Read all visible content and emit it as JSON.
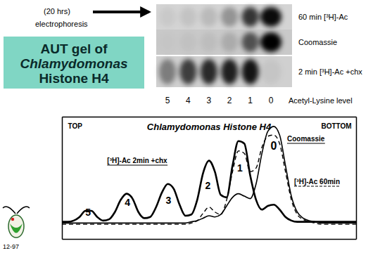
{
  "header": {
    "arrow_text": [
      "(20 hrs)",
      "electrophoresis"
    ],
    "title_lines": [
      "AUT gel of",
      "Chlamydomonas",
      "Histone H4"
    ]
  },
  "gel": {
    "levels": [
      5,
      4,
      3,
      2,
      1,
      0
    ],
    "levels_label": "Acetyl-Lysine level",
    "lanes": [
      {
        "label": "60 min [³H]-Ac",
        "intensities": [
          0.05,
          0.08,
          0.12,
          0.3,
          0.75,
          0.95
        ]
      },
      {
        "label": "Coomassie",
        "intensities": [
          0.02,
          0.04,
          0.06,
          0.15,
          0.6,
          1.0
        ]
      },
      {
        "label": "2 min [³H]-Ac +chx",
        "intensities": [
          0.4,
          0.7,
          0.8,
          0.85,
          0.9,
          0.05
        ]
      }
    ]
  },
  "footer": {
    "date": "12-97"
  },
  "chart_data": {
    "type": "line",
    "title": "Chlamydomonas Histone H4",
    "x": [
      0,
      2,
      4,
      6,
      8,
      10,
      12,
      14,
      16,
      18,
      20,
      22,
      24,
      26,
      28,
      30,
      32,
      34,
      36,
      38,
      40,
      42,
      44,
      46,
      48,
      50,
      52,
      54,
      56,
      58,
      60,
      62,
      64,
      66,
      68,
      70,
      72,
      74,
      76,
      78,
      80,
      82,
      84,
      86,
      88,
      90,
      92,
      94,
      96,
      98,
      100
    ],
    "xlim": [
      0,
      100
    ],
    "ylim": [
      0,
      100
    ],
    "xticks": [],
    "yticks": [],
    "tick_labels": false,
    "series": [
      {
        "name": "[³H]-Ac 2min +chx",
        "color": "#000000",
        "line_style": "solid",
        "values": [
          14,
          14,
          15,
          18,
          23,
          23,
          18,
          15,
          16,
          22,
          32,
          37,
          33,
          22,
          17,
          18,
          26,
          38,
          45,
          41,
          28,
          19,
          20,
          32,
          54,
          64,
          55,
          36,
          34,
          60,
          80,
          78,
          52,
          32,
          24,
          27,
          28,
          24,
          18,
          15,
          14,
          14,
          14,
          14,
          14,
          14,
          14,
          14,
          14,
          14,
          14
        ]
      },
      {
        "name": "Coomassie",
        "color": "#000000",
        "line_style": "solid",
        "values": [
          13,
          13,
          13,
          13,
          13,
          13,
          13,
          13,
          13,
          13,
          13,
          13,
          13,
          13,
          13,
          13,
          13,
          13,
          13,
          13,
          13,
          13,
          14,
          15,
          17,
          19,
          18,
          20,
          27,
          34,
          37,
          35,
          33,
          45,
          70,
          88,
          92,
          85,
          60,
          35,
          22,
          17,
          15,
          14,
          13,
          13,
          13,
          13,
          13,
          13,
          13
        ]
      },
      {
        "name": "[³H]-Ac 60min",
        "color": "#000000",
        "line_style": "dashed",
        "values": [
          12,
          12,
          12,
          12,
          12,
          12,
          12,
          12,
          12,
          12,
          12,
          12,
          12,
          12,
          12,
          12,
          12,
          12,
          12,
          12,
          12,
          12,
          13,
          15,
          21,
          26,
          22,
          20,
          32,
          55,
          72,
          70,
          55,
          58,
          75,
          84,
          85,
          78,
          55,
          32,
          20,
          16,
          14,
          13,
          12,
          12,
          12,
          12,
          12,
          12,
          12
        ]
      }
    ],
    "annotations": [
      {
        "text": "TOP",
        "x": 4.5,
        "y": 90
      },
      {
        "text": "BOTTOM",
        "x": 93.3,
        "y": 90
      },
      {
        "text": "5",
        "x": 8.9,
        "y": 19
      },
      {
        "text": "4",
        "x": 22.3,
        "y": 27
      },
      {
        "text": "3",
        "x": 36.2,
        "y": 29
      },
      {
        "text": "2",
        "x": 49.6,
        "y": 41
      },
      {
        "text": "1",
        "x": 60.5,
        "y": 55
      },
      {
        "text": "0",
        "x": 72,
        "y": 73
      }
    ]
  }
}
